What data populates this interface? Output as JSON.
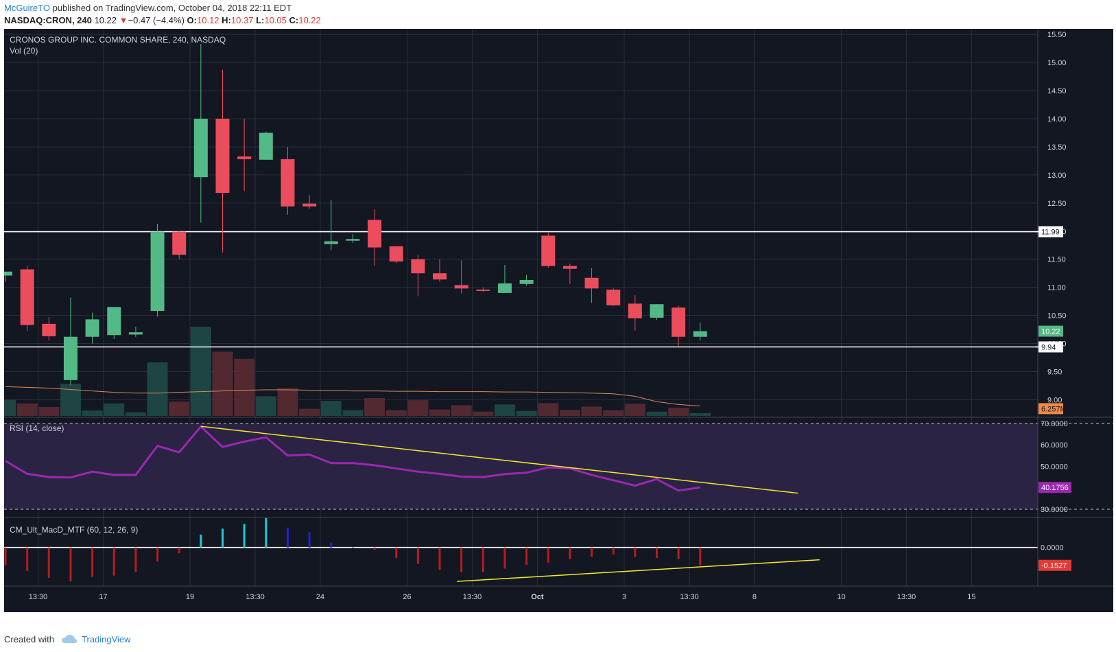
{
  "header": {
    "author": "McGuireTO",
    "published_text": "published on TradingView.com, October 04, 2018 22:11 EDT"
  },
  "quote": {
    "symbol": "NASDAQ:CRON, 240",
    "last": "10.22",
    "arrow": "▼",
    "change": "−0.47 (−4.4%)",
    "o_label": "O:",
    "o": "10.12",
    "h_label": "H:",
    "h": "10.37",
    "l_label": "L:",
    "l": "10.05",
    "c_label": "C:",
    "c": "10.22"
  },
  "footer": {
    "created_with": "Created with",
    "brand": "TradingView"
  },
  "colors": {
    "bg": "#131722",
    "up": "#53b987",
    "down": "#eb4d5c",
    "rsi": "#9c27b0",
    "rsi_band": "#2a2344",
    "trend": "#f5e92c",
    "vol_ma": "#d98a55",
    "macd_cyan": "#26c6da",
    "macd_blue": "#1e22d6",
    "macd_red": "#b71c1c"
  },
  "chart_data": [
    {
      "type": "candlestick",
      "title": "CRONOS GROUP INC. COMMON SHARE, 240, NASDAQ",
      "subtitle": "Vol (20)",
      "ylim": [
        8.7,
        15.6
      ],
      "y_ticks": [
        "15.50",
        "15.00",
        "14.50",
        "14.00",
        "13.50",
        "13.00",
        "12.50",
        "12.00",
        "11.50",
        "11.00",
        "10.50",
        "10.00",
        "9.50",
        "9.00"
      ],
      "x_ticks": [
        {
          "label": "13:30",
          "i": 1.5
        },
        {
          "label": "17",
          "i": 4.5
        },
        {
          "label": "19",
          "i": 8.5
        },
        {
          "label": "13:30",
          "i": 11.5
        },
        {
          "label": "24",
          "i": 14.5
        },
        {
          "label": "26",
          "i": 18.5
        },
        {
          "label": "13:30",
          "i": 21.5
        },
        {
          "label": "Oct",
          "i": 24.5
        },
        {
          "label": "3",
          "i": 28.5
        },
        {
          "label": "13:30",
          "i": 31.5
        },
        {
          "label": "8",
          "i": 34.5
        },
        {
          "label": "10",
          "i": 38.5
        },
        {
          "label": "13:30",
          "i": 41.5
        },
        {
          "label": "15",
          "i": 44.5
        }
      ],
      "candles": [
        {
          "o": 11.21,
          "h": 11.26,
          "l": 11.1,
          "c": 11.28
        },
        {
          "o": 11.32,
          "h": 11.38,
          "l": 10.22,
          "c": 10.33
        },
        {
          "o": 10.35,
          "h": 10.47,
          "l": 10.05,
          "c": 10.13
        },
        {
          "o": 9.35,
          "h": 10.82,
          "l": 9.26,
          "c": 10.12
        },
        {
          "o": 10.12,
          "h": 10.55,
          "l": 10.0,
          "c": 10.43
        },
        {
          "o": 10.15,
          "h": 10.65,
          "l": 10.08,
          "c": 10.65
        },
        {
          "o": 10.16,
          "h": 10.3,
          "l": 10.12,
          "c": 10.2
        },
        {
          "o": 10.58,
          "h": 12.13,
          "l": 10.48,
          "c": 11.99
        },
        {
          "o": 11.99,
          "h": 12.0,
          "l": 11.5,
          "c": 11.58
        },
        {
          "o": 12.96,
          "h": 15.33,
          "l": 12.15,
          "c": 14.0
        },
        {
          "o": 14.0,
          "h": 14.87,
          "l": 11.62,
          "c": 12.68
        },
        {
          "o": 13.33,
          "h": 14.0,
          "l": 12.71,
          "c": 13.28
        },
        {
          "o": 13.27,
          "h": 13.77,
          "l": 13.27,
          "c": 13.75
        },
        {
          "o": 13.28,
          "h": 13.5,
          "l": 12.29,
          "c": 12.44
        },
        {
          "o": 12.49,
          "h": 12.64,
          "l": 12.4,
          "c": 12.44
        },
        {
          "o": 11.77,
          "h": 12.56,
          "l": 11.66,
          "c": 11.82
        },
        {
          "o": 11.83,
          "h": 11.95,
          "l": 11.79,
          "c": 11.86
        },
        {
          "o": 12.2,
          "h": 12.39,
          "l": 11.39,
          "c": 11.71
        },
        {
          "o": 11.73,
          "h": 11.73,
          "l": 11.43,
          "c": 11.46
        },
        {
          "o": 11.5,
          "h": 11.58,
          "l": 10.84,
          "c": 11.25
        },
        {
          "o": 11.25,
          "h": 11.5,
          "l": 11.1,
          "c": 11.14
        },
        {
          "o": 11.04,
          "h": 11.48,
          "l": 10.89,
          "c": 10.98
        },
        {
          "o": 10.96,
          "h": 11.0,
          "l": 10.92,
          "c": 10.94
        },
        {
          "o": 10.9,
          "h": 11.4,
          "l": 10.9,
          "c": 11.07
        },
        {
          "o": 11.06,
          "h": 11.22,
          "l": 11.03,
          "c": 11.13
        },
        {
          "o": 11.92,
          "h": 11.97,
          "l": 11.35,
          "c": 11.38
        },
        {
          "o": 11.38,
          "h": 11.42,
          "l": 11.06,
          "c": 11.33
        },
        {
          "o": 11.17,
          "h": 11.34,
          "l": 10.72,
          "c": 10.98
        },
        {
          "o": 10.96,
          "h": 10.98,
          "l": 10.67,
          "c": 10.68
        },
        {
          "o": 10.71,
          "h": 10.86,
          "l": 10.23,
          "c": 10.45
        },
        {
          "o": 10.46,
          "h": 10.7,
          "l": 10.42,
          "c": 10.7
        },
        {
          "o": 10.64,
          "h": 10.67,
          "l": 9.95,
          "c": 10.12
        },
        {
          "o": 10.12,
          "h": 10.37,
          "l": 10.05,
          "c": 10.22
        }
      ],
      "volume_rel": [
        0.45,
        0.35,
        0.25,
        0.9,
        0.15,
        0.35,
        0.1,
        1.5,
        0.4,
        2.5,
        1.8,
        1.6,
        0.55,
        0.78,
        0.2,
        0.42,
        0.16,
        0.5,
        0.16,
        0.44,
        0.18,
        0.3,
        0.12,
        0.32,
        0.14,
        0.36,
        0.17,
        0.26,
        0.16,
        0.34,
        0.12,
        0.23,
        0.08
      ],
      "volume_ma_rel": [
        0.82,
        0.8,
        0.78,
        0.74,
        0.7,
        0.66,
        0.64,
        0.64,
        0.66,
        0.68,
        0.7,
        0.72,
        0.73,
        0.73,
        0.72,
        0.71,
        0.7,
        0.7,
        0.69,
        0.69,
        0.68,
        0.68,
        0.68,
        0.67,
        0.67,
        0.66,
        0.65,
        0.64,
        0.62,
        0.55,
        0.4,
        0.32,
        0.28
      ],
      "h_lines": [
        11.99,
        9.94
      ],
      "price_labels": {
        "res": "11.99",
        "last": "10.22",
        "sup": "9.94",
        "vol": "6.257M"
      }
    },
    {
      "type": "line",
      "title": "RSI (14, close)",
      "ylim": [
        26.5,
        72.5
      ],
      "y_ticks": [
        "70.0000",
        "60.0000",
        "50.0000",
        "40.0000",
        "30.0000"
      ],
      "band": [
        30,
        70
      ],
      "values": [
        52.5,
        46.5,
        45,
        44.8,
        47.5,
        46,
        46,
        59.5,
        56.5,
        68.5,
        59,
        61.5,
        63.5,
        55,
        55.5,
        51.5,
        51.5,
        50.5,
        49,
        47.5,
        46.5,
        45.2,
        45,
        46.4,
        47,
        49.5,
        49,
        46,
        43.5,
        41,
        44,
        38.7,
        40.1756
      ],
      "trendline": {
        "from": [
          9,
          68.6
        ],
        "to": [
          36.5,
          37.5
        ]
      },
      "last_label": "40.1756"
    },
    {
      "type": "bar",
      "title": "CM_Ult_MacD_MTF (60, 12, 26, 9)",
      "ylim": [
        -0.33,
        0.25
      ],
      "y_ticks": [
        "0.0000"
      ],
      "values": [
        -0.15,
        -0.2,
        -0.26,
        -0.29,
        -0.25,
        -0.24,
        -0.21,
        -0.12,
        -0.05,
        0.11,
        0.16,
        0.2,
        0.25,
        0.17,
        0.13,
        0.04,
        0,
        -0.02,
        -0.09,
        -0.14,
        -0.19,
        -0.21,
        -0.21,
        -0.18,
        -0.15,
        -0.13,
        -0.1,
        -0.08,
        -0.06,
        -0.08,
        -0.09,
        -0.1,
        -0.1527
      ],
      "trendline": {
        "from": [
          20.8,
          -0.29
        ],
        "to": [
          37.5,
          -0.105
        ]
      },
      "last_label": "-0.1527"
    }
  ]
}
